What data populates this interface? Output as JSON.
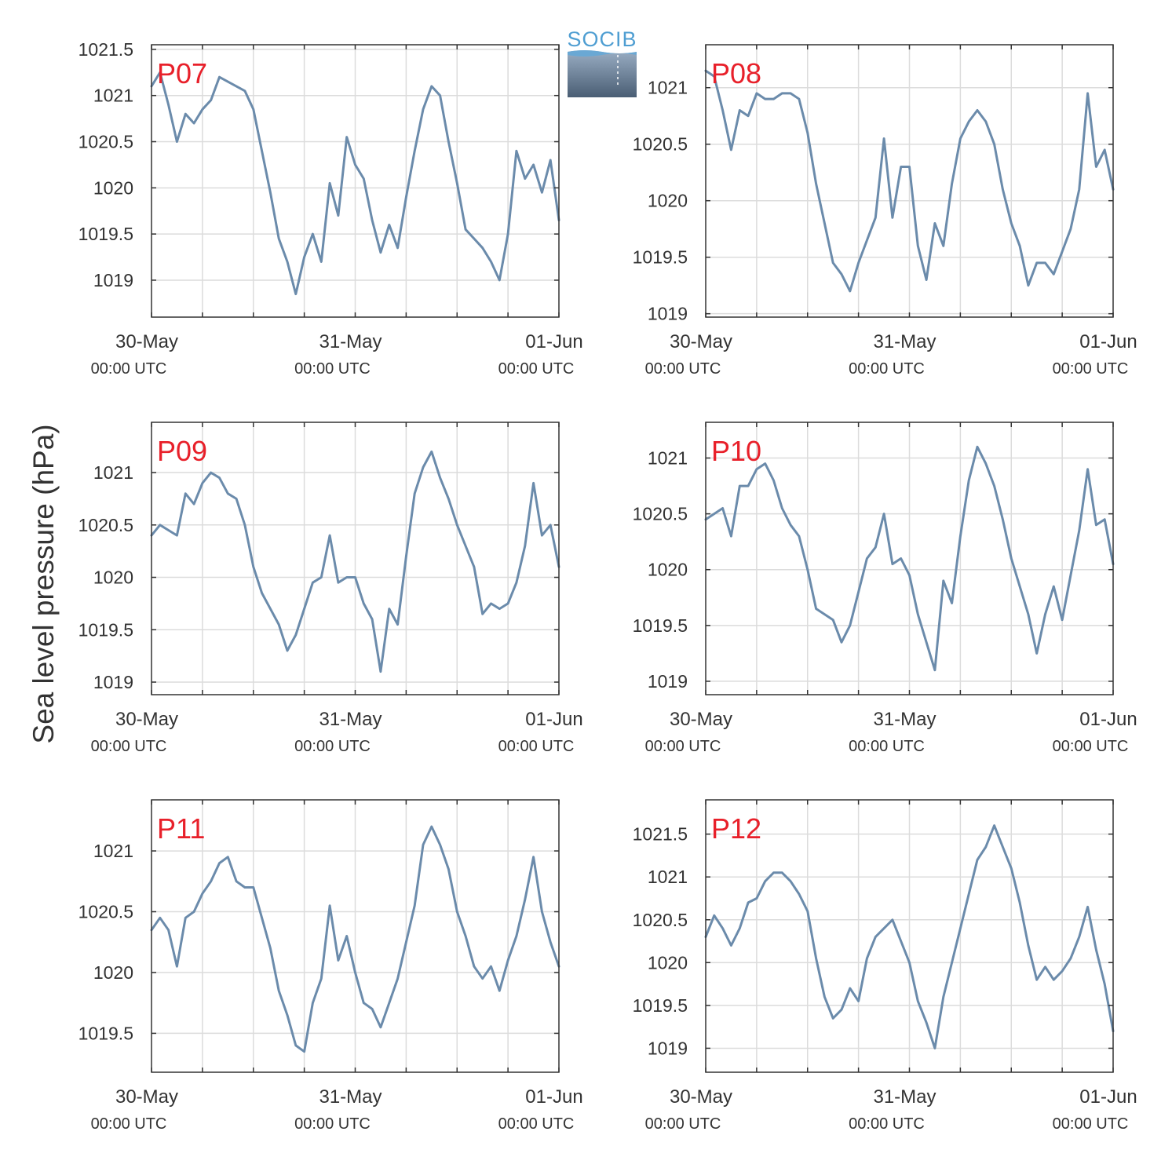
{
  "figure": {
    "ylabel": "Sea level pressure (hPa)",
    "logo_text": "SOCIB",
    "line_color": "#6b8bab",
    "station_label_color": "#e8202a",
    "grid_color": "#dcdcdc",
    "axis_color": "#333333",
    "text_color": "#333333"
  },
  "chart_data": [
    {
      "type": "line",
      "station": "P07",
      "xlim": [
        "2023-05-30T00:00",
        "2023-06-01T00:00"
      ],
      "xticks": [
        {
          "date": "30-May",
          "time": "00:00 UTC"
        },
        {
          "date": "31-May",
          "time": "00:00 UTC"
        },
        {
          "date": "01-Jun",
          "time": "00:00 UTC"
        }
      ],
      "yticks": [
        1019,
        1019.5,
        1020,
        1020.5,
        1021,
        1021.5
      ],
      "ytick_labels": [
        "1019",
        "1019.5",
        "1020",
        "1020.5",
        "1021",
        "1021.5"
      ],
      "ylim": [
        1018.6,
        1021.55
      ],
      "grid": true,
      "x_hours": [
        0,
        1,
        2,
        3,
        4,
        5,
        6,
        7,
        8,
        9,
        10,
        11,
        12,
        13,
        14,
        15,
        16,
        17,
        18,
        19,
        20,
        21,
        22,
        23,
        24,
        25,
        26,
        27,
        28,
        29,
        30,
        31,
        32,
        33,
        34,
        35,
        36,
        37,
        38,
        39,
        40,
        41,
        42,
        43,
        44,
        45,
        46,
        47,
        48
      ],
      "values": [
        1021.1,
        1021.25,
        1020.9,
        1020.5,
        1020.8,
        1020.7,
        1020.85,
        1020.95,
        1021.2,
        1021.15,
        1021.1,
        1021.05,
        1020.85,
        1020.4,
        1019.95,
        1019.45,
        1019.2,
        1018.85,
        1019.25,
        1019.5,
        1019.2,
        1020.05,
        1019.7,
        1020.55,
        1020.25,
        1020.1,
        1019.65,
        1019.3,
        1019.6,
        1019.35,
        1019.9,
        1020.4,
        1020.85,
        1021.1,
        1021.0,
        1020.5,
        1020.05,
        1019.55,
        1019.45,
        1019.35,
        1019.2,
        1019.0,
        1019.5,
        1020.4,
        1020.1,
        1020.25,
        1019.95,
        1020.3,
        1019.65
      ]
    },
    {
      "type": "line",
      "station": "P08",
      "xlim": [
        "2023-05-30T00:00",
        "2023-06-01T00:00"
      ],
      "xticks": [
        {
          "date": "30-May",
          "time": "00:00 UTC"
        },
        {
          "date": "31-May",
          "time": "00:00 UTC"
        },
        {
          "date": "01-Jun",
          "time": "00:00 UTC"
        }
      ],
      "yticks": [
        1019,
        1019.5,
        1020,
        1020.5,
        1021
      ],
      "ytick_labels": [
        "1019",
        "1019.5",
        "1020",
        "1020.5",
        "1021"
      ],
      "ylim": [
        1018.97,
        1021.38
      ],
      "grid": true,
      "x_hours": [
        0,
        1,
        2,
        3,
        4,
        5,
        6,
        7,
        8,
        9,
        10,
        11,
        12,
        13,
        14,
        15,
        16,
        17,
        18,
        19,
        20,
        21,
        22,
        23,
        24,
        25,
        26,
        27,
        28,
        29,
        30,
        31,
        32,
        33,
        34,
        35,
        36,
        37,
        38,
        39,
        40,
        41,
        42,
        43,
        44,
        45,
        46,
        47,
        48
      ],
      "values": [
        1021.15,
        1021.1,
        1020.8,
        1020.45,
        1020.8,
        1020.75,
        1020.95,
        1020.9,
        1020.9,
        1020.95,
        1020.95,
        1020.9,
        1020.6,
        1020.15,
        1019.8,
        1019.45,
        1019.35,
        1019.2,
        1019.45,
        1019.65,
        1019.85,
        1020.55,
        1019.85,
        1020.3,
        1020.3,
        1019.6,
        1019.3,
        1019.8,
        1019.6,
        1020.15,
        1020.55,
        1020.7,
        1020.8,
        1020.7,
        1020.5,
        1020.1,
        1019.8,
        1019.6,
        1019.25,
        1019.45,
        1019.45,
        1019.35,
        1019.55,
        1019.75,
        1020.1,
        1020.95,
        1020.3,
        1020.45,
        1020.1
      ]
    },
    {
      "type": "line",
      "station": "P09",
      "xlim": [
        "2023-05-30T00:00",
        "2023-06-01T00:00"
      ],
      "xticks": [
        {
          "date": "30-May",
          "time": "00:00 UTC"
        },
        {
          "date": "31-May",
          "time": "00:00 UTC"
        },
        {
          "date": "01-Jun",
          "time": "00:00 UTC"
        }
      ],
      "yticks": [
        1019,
        1019.5,
        1020,
        1020.5,
        1021
      ],
      "ytick_labels": [
        "1019",
        "1019.5",
        "1020",
        "1020.5",
        "1021"
      ],
      "ylim": [
        1018.88,
        1021.48
      ],
      "grid": true,
      "x_hours": [
        0,
        1,
        2,
        3,
        4,
        5,
        6,
        7,
        8,
        9,
        10,
        11,
        12,
        13,
        14,
        15,
        16,
        17,
        18,
        19,
        20,
        21,
        22,
        23,
        24,
        25,
        26,
        27,
        28,
        29,
        30,
        31,
        32,
        33,
        34,
        35,
        36,
        37,
        38,
        39,
        40,
        41,
        42,
        43,
        44,
        45,
        46,
        47,
        48
      ],
      "values": [
        1020.4,
        1020.5,
        1020.45,
        1020.4,
        1020.8,
        1020.7,
        1020.9,
        1021.0,
        1020.95,
        1020.8,
        1020.75,
        1020.5,
        1020.1,
        1019.85,
        1019.7,
        1019.55,
        1019.3,
        1019.45,
        1019.7,
        1019.95,
        1020.0,
        1020.4,
        1019.95,
        1020.0,
        1020.0,
        1019.75,
        1019.6,
        1019.1,
        1019.7,
        1019.55,
        1020.2,
        1020.8,
        1021.05,
        1021.2,
        1020.95,
        1020.75,
        1020.5,
        1020.3,
        1020.1,
        1019.65,
        1019.75,
        1019.7,
        1019.75,
        1019.95,
        1020.3,
        1020.9,
        1020.4,
        1020.5,
        1020.1
      ]
    },
    {
      "type": "line",
      "station": "P10",
      "xlim": [
        "2023-05-30T00:00",
        "2023-06-01T00:00"
      ],
      "xticks": [
        {
          "date": "30-May",
          "time": "00:00 UTC"
        },
        {
          "date": "31-May",
          "time": "00:00 UTC"
        },
        {
          "date": "01-Jun",
          "time": "00:00 UTC"
        }
      ],
      "yticks": [
        1019,
        1019.5,
        1020,
        1020.5,
        1021
      ],
      "ytick_labels": [
        "1019",
        "1019.5",
        "1020",
        "1020.5",
        "1021"
      ],
      "ylim": [
        1018.88,
        1021.32
      ],
      "grid": true,
      "x_hours": [
        0,
        1,
        2,
        3,
        4,
        5,
        6,
        7,
        8,
        9,
        10,
        11,
        12,
        13,
        14,
        15,
        16,
        17,
        18,
        19,
        20,
        21,
        22,
        23,
        24,
        25,
        26,
        27,
        28,
        29,
        30,
        31,
        32,
        33,
        34,
        35,
        36,
        37,
        38,
        39,
        40,
        41,
        42,
        43,
        44,
        45,
        46,
        47,
        48
      ],
      "values": [
        1020.45,
        1020.5,
        1020.55,
        1020.3,
        1020.75,
        1020.75,
        1020.9,
        1020.95,
        1020.8,
        1020.55,
        1020.4,
        1020.3,
        1020.0,
        1019.65,
        1019.6,
        1019.55,
        1019.35,
        1019.5,
        1019.8,
        1020.1,
        1020.2,
        1020.5,
        1020.05,
        1020.1,
        1019.95,
        1019.6,
        1019.35,
        1019.1,
        1019.9,
        1019.7,
        1020.3,
        1020.8,
        1021.1,
        1020.95,
        1020.75,
        1020.45,
        1020.1,
        1019.85,
        1019.6,
        1019.25,
        1019.6,
        1019.85,
        1019.55,
        1019.95,
        1020.35,
        1020.9,
        1020.4,
        1020.45,
        1020.05
      ]
    },
    {
      "type": "line",
      "station": "P11",
      "xlim": [
        "2023-05-30T00:00",
        "2023-06-01T00:00"
      ],
      "xticks": [
        {
          "date": "30-May",
          "time": "00:00 UTC"
        },
        {
          "date": "31-May",
          "time": "00:00 UTC"
        },
        {
          "date": "01-Jun",
          "time": "00:00 UTC"
        }
      ],
      "yticks": [
        1019.5,
        1020,
        1020.5,
        1021
      ],
      "ytick_labels": [
        "1019.5",
        "1020",
        "1020.5",
        "1021"
      ],
      "ylim": [
        1019.18,
        1021.42
      ],
      "grid": true,
      "x_hours": [
        0,
        1,
        2,
        3,
        4,
        5,
        6,
        7,
        8,
        9,
        10,
        11,
        12,
        13,
        14,
        15,
        16,
        17,
        18,
        19,
        20,
        21,
        22,
        23,
        24,
        25,
        26,
        27,
        28,
        29,
        30,
        31,
        32,
        33,
        34,
        35,
        36,
        37,
        38,
        39,
        40,
        41,
        42,
        43,
        44,
        45,
        46,
        47,
        48
      ],
      "values": [
        1020.35,
        1020.45,
        1020.35,
        1020.05,
        1020.45,
        1020.5,
        1020.65,
        1020.75,
        1020.9,
        1020.95,
        1020.75,
        1020.7,
        1020.7,
        1020.45,
        1020.2,
        1019.85,
        1019.65,
        1019.4,
        1019.35,
        1019.75,
        1019.95,
        1020.55,
        1020.1,
        1020.3,
        1020.0,
        1019.75,
        1019.7,
        1019.55,
        1019.75,
        1019.95,
        1020.25,
        1020.55,
        1021.05,
        1021.2,
        1021.05,
        1020.85,
        1020.5,
        1020.3,
        1020.05,
        1019.95,
        1020.05,
        1019.85,
        1020.1,
        1020.3,
        1020.6,
        1020.95,
        1020.5,
        1020.25,
        1020.05
      ]
    },
    {
      "type": "line",
      "station": "P12",
      "xlim": [
        "2023-05-30T00:00",
        "2023-06-01T00:00"
      ],
      "xticks": [
        {
          "date": "30-May",
          "time": "00:00 UTC"
        },
        {
          "date": "31-May",
          "time": "00:00 UTC"
        },
        {
          "date": "01-Jun",
          "time": "00:00 UTC"
        }
      ],
      "yticks": [
        1019,
        1019.5,
        1020,
        1020.5,
        1021,
        1021.5
      ],
      "ytick_labels": [
        "1019",
        "1019.5",
        "1020",
        "1020.5",
        "1021",
        "1021.5"
      ],
      "ylim": [
        1018.72,
        1021.9
      ],
      "grid": true,
      "x_hours": [
        0,
        1,
        2,
        3,
        4,
        5,
        6,
        7,
        8,
        9,
        10,
        11,
        12,
        13,
        14,
        15,
        16,
        17,
        18,
        19,
        20,
        21,
        22,
        23,
        24,
        25,
        26,
        27,
        28,
        29,
        30,
        31,
        32,
        33,
        34,
        35,
        36,
        37,
        38,
        39,
        40,
        41,
        42,
        43,
        44,
        45,
        46,
        47,
        48
      ],
      "values": [
        1020.3,
        1020.55,
        1020.4,
        1020.2,
        1020.4,
        1020.7,
        1020.75,
        1020.95,
        1021.05,
        1021.05,
        1020.95,
        1020.8,
        1020.6,
        1020.05,
        1019.6,
        1019.35,
        1019.45,
        1019.7,
        1019.55,
        1020.05,
        1020.3,
        1020.4,
        1020.5,
        1020.25,
        1020.0,
        1019.55,
        1019.3,
        1019.0,
        1019.6,
        1020.0,
        1020.4,
        1020.8,
        1021.2,
        1021.35,
        1021.6,
        1021.35,
        1021.1,
        1020.7,
        1020.2,
        1019.8,
        1019.95,
        1019.8,
        1019.9,
        1020.05,
        1020.3,
        1020.65,
        1020.15,
        1019.75,
        1019.2
      ]
    }
  ]
}
